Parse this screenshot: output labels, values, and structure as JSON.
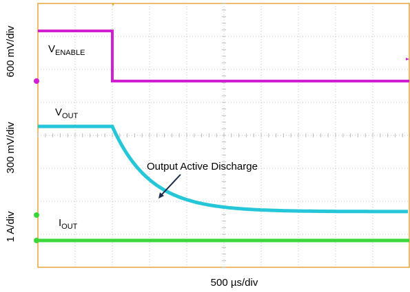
{
  "y_labels": [
    "600 mV/div",
    "300 mV/div",
    "1 A/div"
  ],
  "x_label": "500 µs/div",
  "traces": [
    {
      "main": "V",
      "sub": "ENABLE"
    },
    {
      "main": "V",
      "sub": "OUT"
    },
    {
      "main": "I",
      "sub": "OUT"
    }
  ],
  "annotation": "Output Active Discharge"
}
